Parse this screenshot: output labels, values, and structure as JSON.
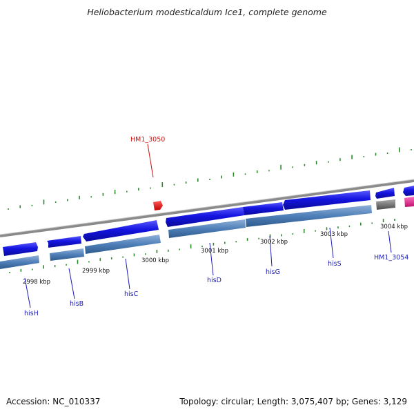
{
  "title": "Heliobacterium modesticaldum Ice1, complete genome",
  "footer": {
    "accession": "Accession: NC_010337",
    "summary": "Topology: circular; Length: 3,075,407 bp; Genes: 3,129"
  },
  "kbp_ticks": [
    "2998 kbp",
    "2999 kbp",
    "3000 kbp",
    "3001 kbp",
    "3002 kbp",
    "3003 kbp",
    "3004 kbp"
  ],
  "genes": {
    "hisH": "hisH",
    "hisB": "hisB",
    "hisC": "hisC",
    "hisD": "hisD",
    "hisG": "hisG",
    "hisS": "hisS",
    "HM1_3054": "HM1_3054",
    "HM1_3050": "HM1_3050"
  },
  "colors": {
    "cds_forward": "#1414e0",
    "cds_underlay": "#4f7fb8",
    "rna_pink": "#e01e8c",
    "pseudo_gray": "#707070",
    "marker_red": "#e01010",
    "gc_tick": "#2a8a2a",
    "backbone": "#8a8a8a"
  }
}
